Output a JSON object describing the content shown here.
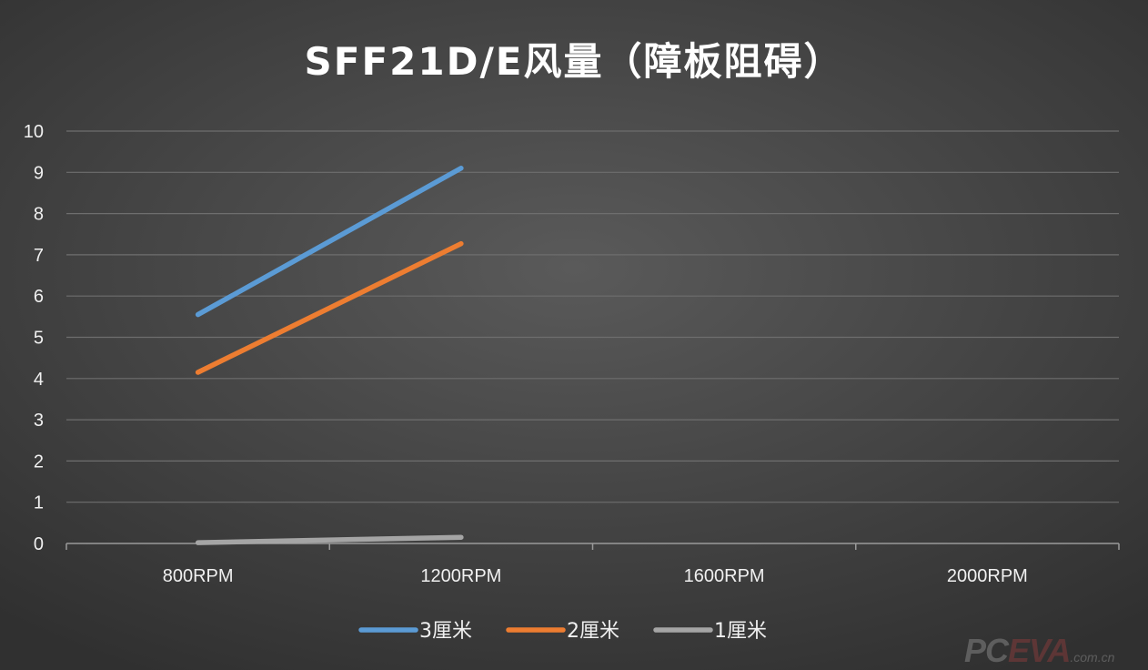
{
  "chart_data": {
    "type": "line",
    "title": "SFF21D/E风量（障板阻碍）",
    "xlabel": "",
    "ylabel": "",
    "categories": [
      "800RPM",
      "1200RPM",
      "1600RPM",
      "2000RPM"
    ],
    "ylim": [
      0,
      10
    ],
    "yticks": [
      "0",
      "1",
      "2",
      "3",
      "4",
      "5",
      "6",
      "7",
      "8",
      "9",
      "10"
    ],
    "grid": true,
    "legend_position": "bottom",
    "series": [
      {
        "name": "3厘米",
        "color": "#5b9bd5",
        "values": [
          5.55,
          9.1,
          null,
          null
        ]
      },
      {
        "name": "2厘米",
        "color": "#ed7d31",
        "values": [
          4.15,
          7.27,
          null,
          null
        ]
      },
      {
        "name": "1厘米",
        "color": "#a5a5a5",
        "values": [
          0.02,
          0.15,
          null,
          null
        ]
      }
    ]
  },
  "watermark": {
    "main": "PC",
    "accent": "EVA",
    "suffix": ".com.cn"
  }
}
